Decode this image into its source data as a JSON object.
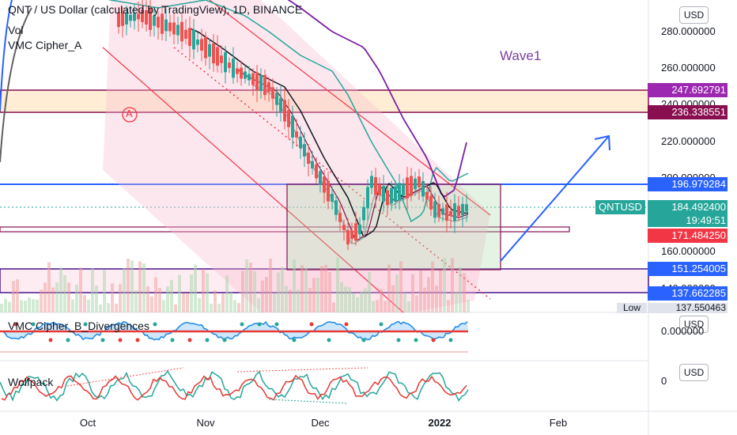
{
  "header": {
    "title": "QNT / US Dollar (calculated by TradingView), 1D, BINANCE",
    "vol_label": "Vol",
    "indicator_label": "VMC Cipher_A"
  },
  "annotations": {
    "wave_label": "Wave1",
    "circle_label": "A"
  },
  "price_axis": {
    "currency_button": "USD",
    "ticks": [
      "280.000000",
      "260.000000",
      "240.000000",
      "220.000000",
      "200.000000",
      "160.000000",
      "140.000000"
    ],
    "current_price": "184.492400",
    "countdown": "19:49:51",
    "symbol_tag": "QNTUSD",
    "low_label": "Low",
    "low_value": "137.550463",
    "tags": [
      {
        "value": "247.692791",
        "color": "#9c27b0"
      },
      {
        "value": "236.338551",
        "color": "#880e4f"
      },
      {
        "value": "196.979284",
        "color": "#2962ff"
      },
      {
        "value": "171.484250",
        "color": "#f23645"
      },
      {
        "value": "151.254005",
        "color": "#2962ff"
      },
      {
        "value": "137.662285",
        "color": "#2962ff"
      }
    ]
  },
  "pane2": {
    "title": "VMC Cipher_B_Divergences",
    "currency_button": "USD",
    "tick": "0.000000"
  },
  "pane3": {
    "title": "Wolfpack",
    "currency_button": "USD",
    "tick": "0"
  },
  "time_axis": {
    "labels": [
      "Oct",
      "Nov",
      "Dec",
      "2022",
      "Feb"
    ]
  },
  "colors": {
    "up": "#26a69a",
    "down": "#ef5350",
    "trend_line": "#2962ff",
    "channel": "#f23645",
    "wave_label": "#7b3fa0"
  }
}
